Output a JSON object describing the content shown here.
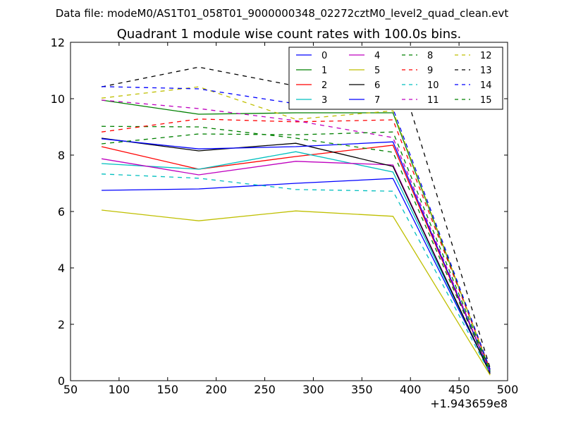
{
  "figure": {
    "suptitle": "Data file: modeM0/AS1T01_058T01_9000000348_02272cztM0_level2_quad_clean.evt"
  },
  "chart_data": {
    "type": "line",
    "title": "Quadrant 1 module wise count rates with 100.0s bins.",
    "xlabel": "",
    "ylabel": "",
    "x_offset_label": "+1.943659e8",
    "xlim": [
      50,
      500
    ],
    "ylim": [
      0,
      12
    ],
    "xticks": [
      "50",
      "100",
      "150",
      "200",
      "250",
      "300",
      "350",
      "400",
      "450",
      "500"
    ],
    "yticks": [
      "0",
      "2",
      "4",
      "6",
      "8",
      "10",
      "12"
    ],
    "grid": false,
    "legend_location": "top-right",
    "legend_columns": 4,
    "x": [
      82,
      182,
      282,
      382,
      482
    ],
    "series": [
      {
        "name": "0",
        "color": "#0000ff",
        "dash": "solid",
        "values": [
          6.75,
          6.8,
          7.0,
          7.17,
          0.3
        ]
      },
      {
        "name": "1",
        "color": "#008000",
        "dash": "solid",
        "values": [
          9.95,
          9.45,
          9.5,
          9.5,
          0.35
        ]
      },
      {
        "name": "2",
        "color": "#ff0000",
        "dash": "solid",
        "values": [
          8.3,
          7.5,
          7.95,
          8.35,
          0.3
        ]
      },
      {
        "name": "3",
        "color": "#00bfbf",
        "dash": "solid",
        "values": [
          7.7,
          7.5,
          8.12,
          7.4,
          0.3
        ]
      },
      {
        "name": "4",
        "color": "#bf00bf",
        "dash": "solid",
        "values": [
          7.87,
          7.3,
          7.78,
          7.65,
          0.25
        ]
      },
      {
        "name": "5",
        "color": "#bfbf00",
        "dash": "solid",
        "values": [
          6.05,
          5.67,
          6.02,
          5.83,
          0.2
        ]
      },
      {
        "name": "6",
        "color": "#000000",
        "dash": "solid",
        "values": [
          8.6,
          8.15,
          8.42,
          7.6,
          0.25
        ]
      },
      {
        "name": "7",
        "color": "#0000ff",
        "dash": "solid",
        "values": [
          8.58,
          8.22,
          8.3,
          8.47,
          0.3
        ]
      },
      {
        "name": "8",
        "color": "#008000",
        "dash": "dashed",
        "values": [
          9.02,
          9.0,
          8.6,
          8.1,
          0.3
        ]
      },
      {
        "name": "9",
        "color": "#ff0000",
        "dash": "dashed",
        "values": [
          8.82,
          9.28,
          9.18,
          9.25,
          0.4
        ]
      },
      {
        "name": "10",
        "color": "#00bfbf",
        "dash": "dashed",
        "values": [
          7.33,
          7.18,
          6.78,
          6.72,
          0.25
        ]
      },
      {
        "name": "11",
        "color": "#bf00bf",
        "dash": "dashed",
        "values": [
          9.95,
          9.65,
          9.22,
          8.62,
          0.3
        ]
      },
      {
        "name": "12",
        "color": "#bfbf00",
        "dash": "dashed",
        "values": [
          10.02,
          10.42,
          9.27,
          9.57,
          0.35
        ]
      },
      {
        "name": "13",
        "color": "#000000",
        "dash": "dashed",
        "values": [
          10.42,
          11.12,
          10.45,
          11.65,
          0.45
        ]
      },
      {
        "name": "14",
        "color": "#0000ff",
        "dash": "dashed",
        "values": [
          10.43,
          10.35,
          9.82,
          9.65,
          0.4
        ]
      },
      {
        "name": "15",
        "color": "#008000",
        "dash": "dashed",
        "values": [
          8.4,
          8.75,
          8.72,
          8.82,
          0.35
        ]
      }
    ]
  }
}
